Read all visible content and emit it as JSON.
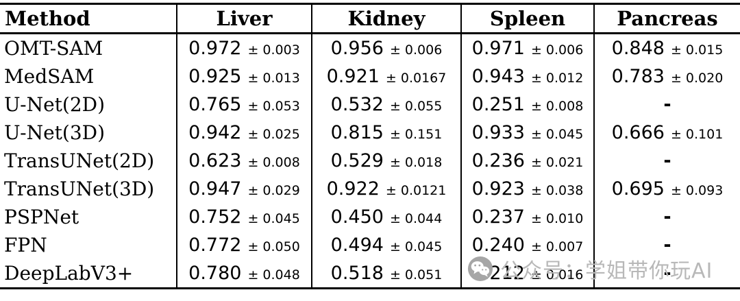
{
  "table": {
    "columns": [
      "Method",
      "Liver",
      "Kidney",
      "Spleen",
      "Pancreas"
    ],
    "rows": [
      {
        "method": "OMT-SAM",
        "cells": [
          {
            "value": "0.972",
            "std": "± 0.003"
          },
          {
            "value": "0.956",
            "std": "± 0.006"
          },
          {
            "value": "0.971",
            "std": "± 0.006"
          },
          {
            "value": "0.848",
            "std": "± 0.015"
          }
        ]
      },
      {
        "method": "MedSAM",
        "cells": [
          {
            "value": "0.925",
            "std": "± 0.013"
          },
          {
            "value": "0.921",
            "std": "± 0.0167"
          },
          {
            "value": "0.943",
            "std": "± 0.012"
          },
          {
            "value": "0.783",
            "std": "± 0.020"
          }
        ]
      },
      {
        "method": "U-Net(2D)",
        "cells": [
          {
            "value": "0.765",
            "std": "± 0.053"
          },
          {
            "value": "0.532",
            "std": "± 0.055"
          },
          {
            "value": "0.251",
            "std": "± 0.008"
          },
          {
            "value": "-"
          }
        ]
      },
      {
        "method": "U-Net(3D)",
        "cells": [
          {
            "value": "0.942",
            "std": "± 0.025"
          },
          {
            "value": "0.815",
            "std": "± 0.151"
          },
          {
            "value": "0.933",
            "std": "± 0.045"
          },
          {
            "value": "0.666",
            "std": "± 0.101"
          }
        ]
      },
      {
        "method": "TransUNet(2D)",
        "cells": [
          {
            "value": "0.623",
            "std": "± 0.008"
          },
          {
            "value": "0.529",
            "std": "± 0.018"
          },
          {
            "value": "0.236",
            "std": "± 0.021"
          },
          {
            "value": "-"
          }
        ]
      },
      {
        "method": "TransUNet(3D)",
        "cells": [
          {
            "value": "0.947",
            "std": "± 0.029"
          },
          {
            "value": "0.922",
            "std": "± 0.0121"
          },
          {
            "value": "0.923",
            "std": "± 0.038"
          },
          {
            "value": "0.695",
            "std": "± 0.093"
          }
        ]
      },
      {
        "method": "PSPNet",
        "cells": [
          {
            "value": "0.752",
            "std": "± 0.045"
          },
          {
            "value": "0.450",
            "std": "± 0.044"
          },
          {
            "value": "0.237",
            "std": "± 0.010"
          },
          {
            "value": "-"
          }
        ]
      },
      {
        "method": "FPN",
        "cells": [
          {
            "value": "0.772",
            "std": "± 0.050"
          },
          {
            "value": "0.494",
            "std": "± 0.045"
          },
          {
            "value": "0.240",
            "std": "± 0.007"
          },
          {
            "value": "-"
          }
        ]
      },
      {
        "method": "DeepLabV3+",
        "cells": [
          {
            "value": "0.780",
            "std": "± 0.048"
          },
          {
            "value": "0.518",
            "std": "± 0.051"
          },
          {
            "value": "0.212",
            "std": "± 0.016"
          },
          {
            "value": "-"
          }
        ]
      }
    ]
  },
  "watermark": {
    "icon": "wechat-icon",
    "text": "公众号：学姐带你玩AI",
    "text_color": "#b8b8b8",
    "icon_color": "#a6a6a6"
  }
}
